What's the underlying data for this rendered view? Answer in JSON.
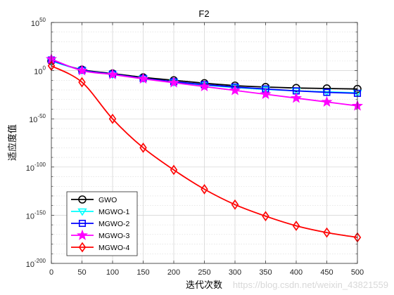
{
  "chart_data": {
    "type": "line",
    "title": "F2",
    "xlabel": "迭代次数",
    "ylabel": "适应度值",
    "xlim": [
      0,
      500
    ],
    "ylim_exponent": [
      -200,
      50
    ],
    "y_scale": "log",
    "grid": true,
    "legend_position": "bottom-left",
    "x_ticks": [
      "0",
      "50",
      "100",
      "150",
      "200",
      "250",
      "300",
      "350",
      "400",
      "450",
      "500"
    ],
    "y_tick_labels": [
      {
        "base": "10",
        "exp": "50"
      },
      {
        "base": "10",
        "exp": "0"
      },
      {
        "base": "10",
        "exp": "-50"
      },
      {
        "base": "10",
        "exp": "-100"
      },
      {
        "base": "10",
        "exp": "-150"
      },
      {
        "base": "10",
        "exp": "-200"
      }
    ],
    "series": [
      {
        "name": "GWO",
        "color": "#000000",
        "marker": "circle",
        "x": [
          0,
          50,
          100,
          150,
          200,
          250,
          300,
          350,
          400,
          450,
          500
        ],
        "y_log10": [
          10,
          1,
          -3,
          -7,
          -10,
          -13,
          -15.5,
          -17,
          -18,
          -18.5,
          -19
        ]
      },
      {
        "name": "MGWO-1",
        "color": "#00ffff",
        "marker": "triangle-down",
        "x": [
          0,
          50,
          100,
          150,
          200,
          250,
          300,
          350,
          400,
          450,
          500
        ],
        "y_log10": [
          10,
          0.5,
          -4,
          -8,
          -12,
          -15,
          -17.5,
          -19.5,
          -21,
          -22,
          -23
        ]
      },
      {
        "name": "MGWO-2",
        "color": "#0000ff",
        "marker": "square",
        "x": [
          0,
          50,
          100,
          150,
          200,
          250,
          300,
          350,
          400,
          450,
          500
        ],
        "y_log10": [
          11,
          0.5,
          -3.5,
          -8,
          -11.5,
          -14.5,
          -17,
          -19,
          -21,
          -22.5,
          -23.5
        ]
      },
      {
        "name": "MGWO-3",
        "color": "#ff00ff",
        "marker": "star",
        "x": [
          0,
          50,
          100,
          150,
          200,
          250,
          300,
          350,
          400,
          450,
          500
        ],
        "y_log10": [
          12,
          0,
          -4,
          -8.5,
          -12.5,
          -16.5,
          -20.5,
          -24.5,
          -28.5,
          -32.5,
          -36.5
        ]
      },
      {
        "name": "MGWO-4",
        "color": "#ff0000",
        "marker": "diamond",
        "x": [
          0,
          50,
          100,
          150,
          200,
          250,
          300,
          350,
          400,
          450,
          500
        ],
        "y_log10": [
          5,
          -12,
          -50,
          -80,
          -103,
          -123,
          -139,
          -151,
          -161,
          -168,
          -173
        ]
      }
    ]
  },
  "watermark": "https://blog.csdn.net/weixin_43821559"
}
